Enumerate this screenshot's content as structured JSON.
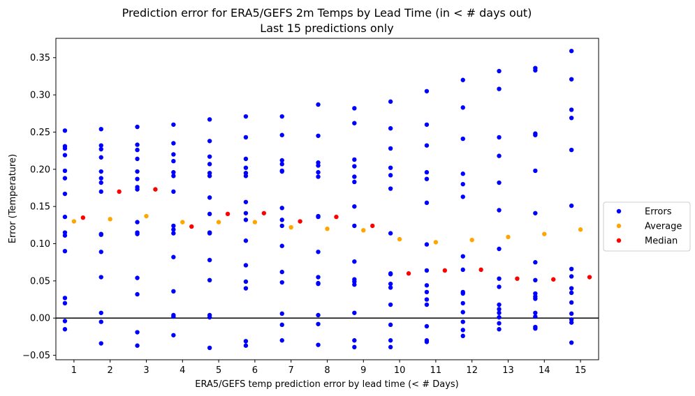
{
  "chart_data": {
    "type": "scatter",
    "title": "Prediction error for ERA5/GEFS 2m Temps by Lead Time (in < # days out)",
    "subtitle": "Last 15 predictions only",
    "xlabel": "ERA5/GEFS temp prediction error by lead time (< # Days)",
    "ylabel": "Error (Temperature)",
    "xlim": [
      0.5,
      15.5
    ],
    "ylim": [
      -0.056,
      0.376
    ],
    "x_ticks": [
      "1",
      "2",
      "3",
      "4",
      "5",
      "6",
      "7",
      "8",
      "9",
      "10",
      "11",
      "12",
      "13",
      "14",
      "15"
    ],
    "y_ticks": [
      "−0.05",
      "0.00",
      "0.05",
      "0.10",
      "0.15",
      "0.20",
      "0.25",
      "0.30",
      "0.35"
    ],
    "y_tick_values": [
      -0.05,
      0.0,
      0.05,
      0.1,
      0.15,
      0.2,
      0.25,
      0.3,
      0.35
    ],
    "reference_line_y": 0.0,
    "legend_position": "right",
    "series": [
      {
        "name": "Errors",
        "color": "#0000ff",
        "x_offset": -0.25,
        "points": [
          {
            "day": 1,
            "values": [
              0.252,
              0.231,
              0.228,
              0.219,
              0.198,
              0.188,
              0.167,
              0.136,
              0.115,
              0.111,
              0.09,
              0.027,
              0.02,
              -0.004,
              -0.015
            ]
          },
          {
            "day": 2,
            "values": [
              0.254,
              0.232,
              0.227,
              0.216,
              0.197,
              0.188,
              0.182,
              0.17,
              0.113,
              0.112,
              0.089,
              0.055,
              0.007,
              -0.005,
              -0.034
            ]
          },
          {
            "day": 3,
            "values": [
              0.257,
              0.233,
              0.226,
              0.214,
              0.197,
              0.187,
              0.176,
              0.173,
              0.129,
              0.115,
              0.113,
              0.054,
              0.032,
              -0.019,
              -0.037
            ]
          },
          {
            "day": 4,
            "values": [
              0.26,
              0.235,
              0.22,
              0.211,
              0.196,
              0.191,
              0.17,
              0.124,
              0.119,
              0.114,
              0.082,
              0.036,
              0.004,
              0.002,
              -0.023
            ]
          },
          {
            "day": 5,
            "values": [
              0.267,
              0.238,
              0.217,
              0.207,
              0.195,
              0.191,
              0.162,
              0.14,
              0.115,
              0.114,
              0.078,
              0.051,
              0.004,
              0.001,
              -0.04
            ]
          },
          {
            "day": 6,
            "values": [
              0.271,
              0.243,
              0.214,
              0.202,
              0.195,
              0.191,
              0.156,
              0.141,
              0.132,
              0.104,
              0.071,
              0.049,
              0.04,
              -0.031,
              -0.037
            ]
          },
          {
            "day": 7,
            "values": [
              0.271,
              0.246,
              0.212,
              0.207,
              0.198,
              0.197,
              0.148,
              0.132,
              0.124,
              0.097,
              0.062,
              0.048,
              0.006,
              -0.009,
              -0.03
            ]
          },
          {
            "day": 8,
            "values": [
              0.287,
              0.245,
              0.209,
              0.205,
              0.196,
              0.19,
              0.137,
              0.136,
              0.089,
              0.055,
              0.047,
              0.046,
              0.004,
              -0.008,
              -0.036
            ]
          },
          {
            "day": 9,
            "values": [
              0.282,
              0.262,
              0.213,
              0.204,
              0.19,
              0.183,
              0.15,
              0.124,
              0.076,
              0.052,
              0.049,
              0.045,
              0.007,
              -0.03,
              -0.039
            ]
          },
          {
            "day": 10,
            "values": [
              0.291,
              0.255,
              0.228,
              0.202,
              0.192,
              0.174,
              0.114,
              0.06,
              0.059,
              0.046,
              0.041,
              0.018,
              -0.009,
              -0.03,
              -0.039
            ]
          },
          {
            "day": 11,
            "values": [
              0.305,
              0.26,
              0.232,
              0.196,
              0.187,
              0.155,
              0.099,
              0.064,
              0.044,
              0.035,
              0.025,
              0.018,
              -0.011,
              -0.03,
              -0.032
            ]
          },
          {
            "day": 12,
            "values": [
              0.32,
              0.283,
              0.241,
              0.194,
              0.18,
              0.163,
              0.083,
              0.065,
              0.035,
              0.033,
              0.02,
              0.008,
              -0.005,
              -0.016,
              -0.024
            ]
          },
          {
            "day": 13,
            "values": [
              0.332,
              0.308,
              0.243,
              0.218,
              0.182,
              0.145,
              0.093,
              0.053,
              0.042,
              0.018,
              0.012,
              0.007,
              0.001,
              -0.007,
              -0.015
            ]
          },
          {
            "day": 14,
            "values": [
              0.336,
              0.333,
              0.248,
              0.246,
              0.198,
              0.141,
              0.075,
              0.051,
              0.033,
              0.029,
              0.026,
              0.007,
              0.002,
              -0.012,
              -0.014
            ]
          },
          {
            "day": 15,
            "values": [
              0.359,
              0.321,
              0.28,
              0.269,
              0.226,
              0.151,
              0.066,
              0.056,
              0.04,
              0.034,
              0.021,
              0.006,
              -0.002,
              -0.006,
              -0.033
            ]
          }
        ]
      },
      {
        "name": "Average",
        "color": "#ffa500",
        "x_offset": 0.0,
        "points": [
          {
            "day": 1,
            "value": 0.13
          },
          {
            "day": 2,
            "value": 0.133
          },
          {
            "day": 3,
            "value": 0.137
          },
          {
            "day": 4,
            "value": 0.129
          },
          {
            "day": 5,
            "value": 0.129
          },
          {
            "day": 6,
            "value": 0.129
          },
          {
            "day": 7,
            "value": 0.122
          },
          {
            "day": 8,
            "value": 0.12
          },
          {
            "day": 9,
            "value": 0.118
          },
          {
            "day": 10,
            "value": 0.106
          },
          {
            "day": 11,
            "value": 0.102
          },
          {
            "day": 12,
            "value": 0.105
          },
          {
            "day": 13,
            "value": 0.109
          },
          {
            "day": 14,
            "value": 0.113
          },
          {
            "day": 15,
            "value": 0.119
          }
        ]
      },
      {
        "name": "Median",
        "color": "#ff0000",
        "x_offset": 0.25,
        "points": [
          {
            "day": 1,
            "value": 0.135
          },
          {
            "day": 2,
            "value": 0.17
          },
          {
            "day": 3,
            "value": 0.173
          },
          {
            "day": 4,
            "value": 0.123
          },
          {
            "day": 5,
            "value": 0.14
          },
          {
            "day": 6,
            "value": 0.141
          },
          {
            "day": 7,
            "value": 0.13
          },
          {
            "day": 8,
            "value": 0.136
          },
          {
            "day": 9,
            "value": 0.124
          },
          {
            "day": 10,
            "value": 0.06
          },
          {
            "day": 11,
            "value": 0.064
          },
          {
            "day": 12,
            "value": 0.065
          },
          {
            "day": 13,
            "value": 0.053
          },
          {
            "day": 14,
            "value": 0.052
          },
          {
            "day": 15,
            "value": 0.055
          }
        ]
      }
    ]
  }
}
